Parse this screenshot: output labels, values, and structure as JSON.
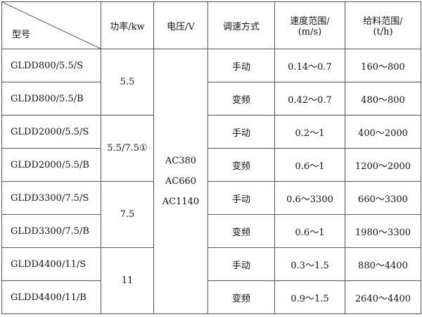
{
  "headers": {
    "model": "型号",
    "power": "功率/kw",
    "voltage": "电压/V",
    "speed_mode": "调速方式",
    "speed_range_1": "速度范围/",
    "speed_range_2": "(m/s)",
    "feed_range_1": "给料范围/",
    "feed_range_2": "(t/h)"
  },
  "voltages": [
    "AC380",
    "AC660",
    "AC1140"
  ],
  "powers": [
    "5.5",
    "5.5/7.5①",
    "7.5",
    "11"
  ],
  "rows": [
    {
      "model": "GLDD800/5.5/S",
      "mode": "手动",
      "speed": "0.14～0.7",
      "feed": "160～800"
    },
    {
      "model": "GLDD800/5.5/B",
      "mode": "变频",
      "speed": "0.42～0.7",
      "feed": "480～800"
    },
    {
      "model": "GLDD2000/5.5/S",
      "mode": "手动",
      "speed": "0.2～1",
      "feed": "400～2000"
    },
    {
      "model": "GLDD2000/5.5/B",
      "mode": "变频",
      "speed": "0.6～1",
      "feed": "1200～2000"
    },
    {
      "model": "GLDD3300/7.5/S",
      "mode": "手动",
      "speed": "0.6～3300",
      "feed": "660～3300"
    },
    {
      "model": "GLDD3300/7.5/B",
      "mode": "变频",
      "speed": "0.6～1",
      "feed": "1980～3300"
    },
    {
      "model": "GLDD4400/11/S",
      "mode": "手动",
      "speed": "0.3～1.5",
      "feed": "880～4400"
    },
    {
      "model": "GLDD4400/11/B",
      "mode": "变频",
      "speed": "0.9～1.5",
      "feed": "2640～4400"
    }
  ]
}
